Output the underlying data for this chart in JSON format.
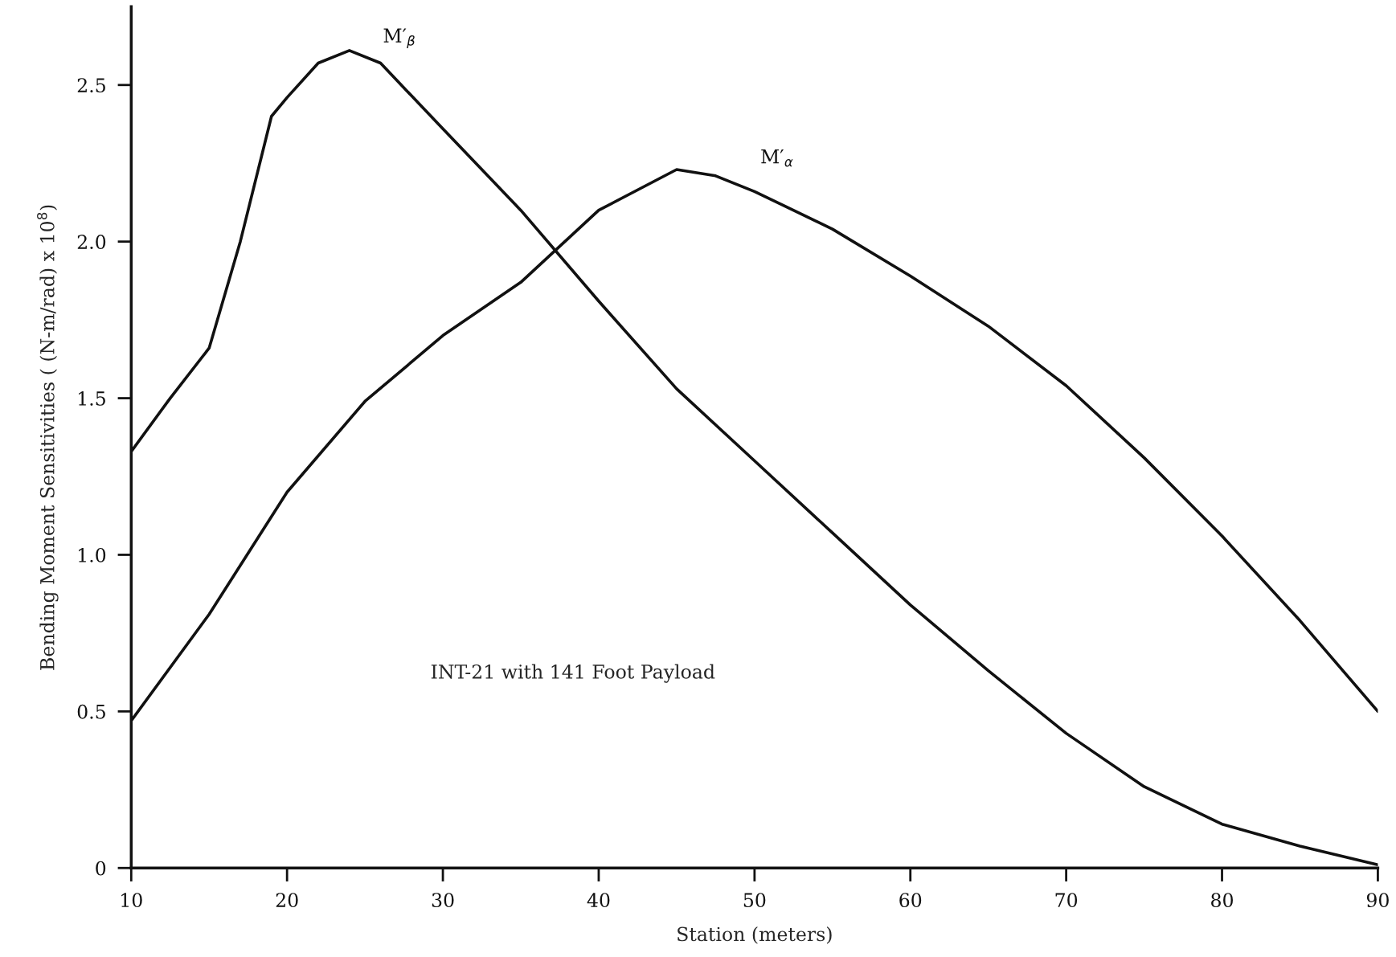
{
  "chart_data": {
    "type": "line",
    "xlabel": "Station (meters)",
    "ylabel": "Bending Moment Sensitivities ( (N-m/rad) x 10$^{8}$)",
    "xlim": [
      10,
      90
    ],
    "xticks": [
      10,
      20,
      30,
      40,
      50,
      60,
      70,
      80,
      90
    ],
    "ylim": [
      0,
      2.75
    ],
    "yticks": [
      0,
      {
        "value": 0.5,
        "label": "0.5"
      },
      {
        "value": 1,
        "label": "1.0"
      },
      {
        "value": 1.5,
        "label": "1.5"
      },
      {
        "value": 2,
        "label": "2.0"
      },
      {
        "value": 2.5,
        "label": "2.5"
      }
    ],
    "grid": false,
    "legend": false,
    "marker": "none",
    "line_style": "solid",
    "annotations": [
      "INT-21 with 141 Foot Payload"
    ],
    "series": [
      {
        "name": "M′$_{β}$",
        "color": "#111111",
        "x": [
          10,
          12.5,
          15,
          17,
          19,
          20,
          22,
          24,
          26,
          30,
          35,
          40,
          45,
          50,
          55,
          60,
          65,
          70,
          75,
          80,
          85,
          90
        ],
        "values": [
          1.33,
          1.5,
          1.66,
          2.0,
          2.4,
          2.46,
          2.57,
          2.61,
          2.57,
          2.36,
          2.1,
          1.81,
          1.53,
          1.3,
          1.07,
          0.84,
          0.63,
          0.43,
          0.26,
          0.14,
          0.07,
          0.01
        ]
      },
      {
        "name": "M′$_{α}$",
        "color": "#111111",
        "x": [
          10,
          15,
          20,
          25,
          30,
          35,
          40,
          45,
          47.5,
          50,
          55,
          60,
          65,
          70,
          75,
          80,
          85,
          90
        ],
        "values": [
          0.47,
          0.81,
          1.2,
          1.49,
          1.7,
          1.87,
          2.1,
          2.23,
          2.21,
          2.16,
          2.04,
          1.89,
          1.73,
          1.54,
          1.31,
          1.06,
          0.79,
          0.5
        ]
      }
    ]
  }
}
